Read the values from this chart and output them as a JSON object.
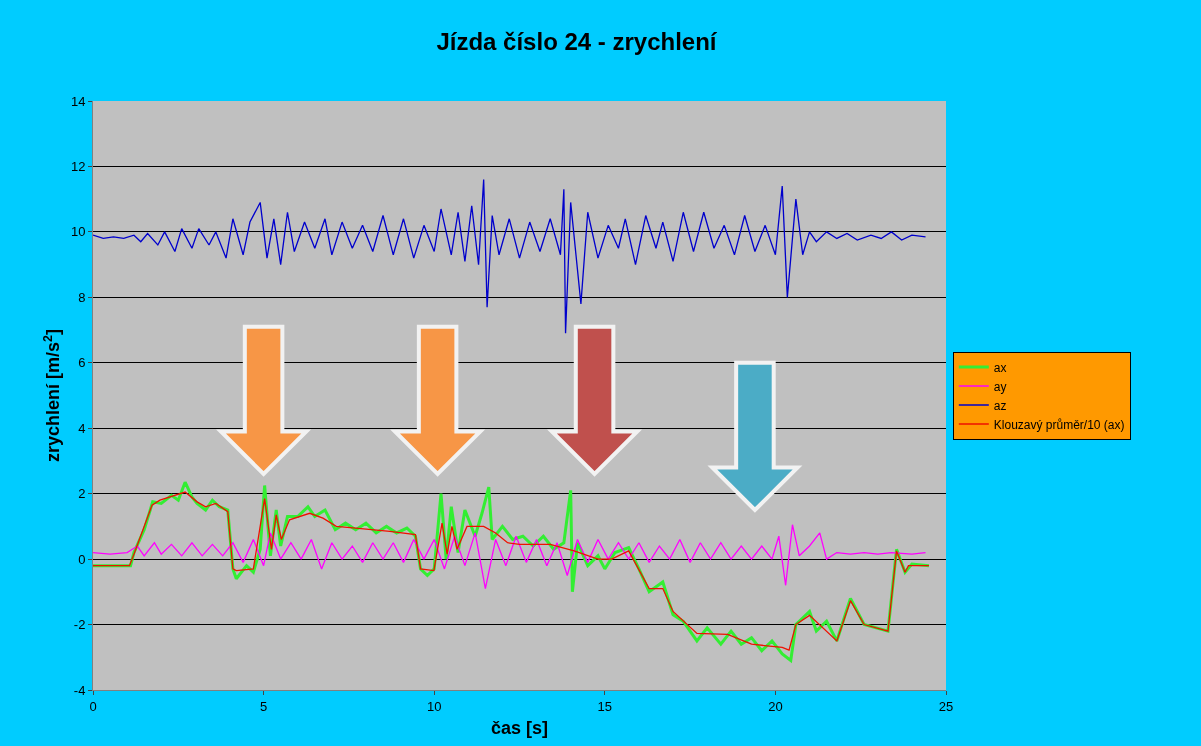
{
  "chart_data": {
    "type": "line",
    "title": "Jízda číslo 24 - zrychlení",
    "xlabel": "čas [s]",
    "ylabel": "zrychlení [m/s$^{2}$]",
    "xlim": [
      0,
      25
    ],
    "xticks": [
      0,
      5,
      10,
      15,
      20,
      25
    ],
    "ylim": [
      -4,
      14
    ],
    "yticks": [
      -4,
      -2,
      0,
      2,
      4,
      6,
      8,
      10,
      12,
      14
    ],
    "grid": "y",
    "legend": "right",
    "marker": "none",
    "line_style": "solid",
    "series": [
      {
        "name": "ax",
        "color": "#33ee33",
        "x": [
          0,
          1.1,
          1.2,
          1.5,
          1.75,
          2.0,
          2.3,
          2.5,
          2.7,
          2.9,
          3.05,
          3.3,
          3.5,
          3.7,
          3.95,
          4.1,
          4.2,
          4.5,
          4.7,
          4.9,
          5.03,
          5.2,
          5.37,
          5.5,
          5.7,
          6.0,
          6.3,
          6.5,
          6.8,
          7.1,
          7.4,
          7.7,
          8.0,
          8.3,
          8.6,
          8.9,
          9.2,
          9.45,
          9.6,
          9.8,
          10.0,
          10.2,
          10.35,
          10.5,
          10.7,
          10.9,
          11.2,
          11.4,
          11.6,
          11.7,
          12.0,
          12.3,
          12.6,
          12.9,
          13.2,
          13.5,
          13.8,
          14.0,
          14.05,
          14.2,
          14.5,
          14.8,
          15.0,
          15.3,
          15.7,
          16.0,
          16.3,
          16.7,
          17.0,
          17.3,
          17.7,
          18.0,
          18.4,
          18.7,
          19.0,
          19.3,
          19.6,
          19.9,
          20.2,
          20.45,
          20.6,
          20.8,
          21.0,
          21.2,
          21.5,
          21.8,
          22.2,
          22.6,
          23.3,
          23.55,
          23.8,
          24.0,
          24.5
        ],
        "values": [
          -0.2,
          -0.2,
          0.2,
          0.9,
          1.75,
          1.7,
          1.95,
          1.8,
          2.35,
          1.9,
          1.7,
          1.5,
          1.8,
          1.6,
          1.5,
          -0.3,
          -0.6,
          -0.2,
          -0.4,
          0.3,
          2.25,
          0.1,
          1.5,
          0.4,
          1.3,
          1.3,
          1.6,
          1.3,
          1.5,
          0.9,
          1.1,
          0.9,
          1.1,
          0.8,
          1.0,
          0.8,
          0.95,
          0.7,
          -0.3,
          -0.5,
          -0.3,
          2.0,
          0.0,
          1.6,
          0.2,
          1.5,
          0.7,
          1.4,
          2.2,
          0.6,
          1.0,
          0.6,
          0.7,
          0.4,
          0.7,
          0.3,
          0.5,
          2.1,
          -1.0,
          0.5,
          -0.2,
          0.1,
          -0.3,
          0.2,
          0.35,
          -0.3,
          -1.0,
          -0.7,
          -1.7,
          -1.9,
          -2.5,
          -2.1,
          -2.6,
          -2.2,
          -2.6,
          -2.4,
          -2.8,
          -2.5,
          -2.9,
          -3.1,
          -2.0,
          -1.8,
          -1.6,
          -2.2,
          -1.9,
          -2.5,
          -1.2,
          -2.0,
          -2.2,
          0.3,
          -0.4,
          -0.15,
          -0.2
        ]
      },
      {
        "name": "ay",
        "color": "#ff00ff",
        "x": [
          0,
          0.5,
          1.0,
          1.3,
          1.5,
          1.8,
          2.0,
          2.3,
          2.6,
          2.9,
          3.2,
          3.5,
          3.8,
          4.1,
          4.4,
          4.7,
          5.0,
          5.2,
          5.5,
          5.8,
          6.1,
          6.4,
          6.7,
          7.0,
          7.3,
          7.6,
          7.9,
          8.2,
          8.5,
          8.8,
          9.1,
          9.4,
          9.7,
          10.0,
          10.3,
          10.6,
          10.9,
          11.2,
          11.5,
          11.8,
          12.1,
          12.4,
          12.7,
          13.0,
          13.3,
          13.6,
          13.9,
          14.2,
          14.5,
          14.8,
          15.1,
          15.4,
          15.7,
          16.0,
          16.3,
          16.6,
          16.9,
          17.2,
          17.5,
          17.8,
          18.1,
          18.4,
          18.7,
          19.0,
          19.3,
          19.6,
          19.9,
          20.1,
          20.3,
          20.5,
          20.7,
          21.0,
          21.3,
          21.5,
          21.8,
          22.2,
          22.6,
          23.0,
          23.4,
          24.0,
          24.4
        ],
        "values": [
          0.2,
          0.15,
          0.2,
          0.4,
          0.1,
          0.5,
          0.15,
          0.45,
          0.1,
          0.5,
          0.1,
          0.45,
          0.1,
          0.5,
          -0.1,
          0.6,
          -0.2,
          0.8,
          0.0,
          0.5,
          0.0,
          0.6,
          -0.3,
          0.5,
          0.0,
          0.4,
          -0.1,
          0.5,
          0.0,
          0.5,
          -0.1,
          0.6,
          0.0,
          0.6,
          -0.3,
          0.7,
          -0.2,
          0.8,
          -0.9,
          0.6,
          -0.2,
          0.7,
          -0.1,
          0.6,
          -0.2,
          0.5,
          -0.5,
          0.6,
          -0.1,
          0.6,
          0.0,
          0.5,
          0.0,
          0.5,
          -0.1,
          0.4,
          0.0,
          0.6,
          -0.1,
          0.5,
          0.0,
          0.5,
          0.0,
          0.4,
          0.0,
          0.4,
          0.0,
          0.7,
          -0.8,
          1.05,
          0.1,
          0.4,
          0.8,
          0.0,
          0.2,
          0.15,
          0.2,
          0.15,
          0.2,
          0.15,
          0.2
        ]
      },
      {
        "name": "az",
        "color": "#0000cc",
        "x": [
          0,
          0.3,
          0.6,
          0.9,
          1.2,
          1.4,
          1.6,
          1.9,
          2.1,
          2.4,
          2.6,
          2.9,
          3.1,
          3.4,
          3.6,
          3.9,
          4.1,
          4.4,
          4.6,
          4.9,
          5.1,
          5.3,
          5.5,
          5.7,
          5.9,
          6.2,
          6.5,
          6.8,
          7.0,
          7.3,
          7.6,
          7.9,
          8.2,
          8.5,
          8.8,
          9.1,
          9.4,
          9.7,
          10.0,
          10.2,
          10.5,
          10.7,
          10.9,
          11.1,
          11.3,
          11.45,
          11.55,
          11.7,
          11.9,
          12.2,
          12.5,
          12.8,
          13.1,
          13.4,
          13.7,
          13.8,
          13.85,
          14.0,
          14.3,
          14.5,
          14.8,
          15.1,
          15.4,
          15.6,
          15.9,
          16.2,
          16.5,
          16.7,
          17.0,
          17.3,
          17.6,
          17.9,
          18.2,
          18.5,
          18.8,
          19.1,
          19.4,
          19.7,
          20.0,
          20.2,
          20.35,
          20.6,
          20.8,
          21.0,
          21.2,
          21.5,
          21.8,
          22.1,
          22.4,
          22.8,
          23.1,
          23.4,
          23.7,
          24.0,
          24.4
        ],
        "values": [
          9.9,
          9.8,
          9.85,
          9.8,
          9.9,
          9.7,
          9.95,
          9.6,
          10.0,
          9.4,
          10.1,
          9.5,
          10.1,
          9.6,
          10.0,
          9.2,
          10.4,
          9.3,
          10.3,
          10.9,
          9.2,
          10.4,
          9.0,
          10.6,
          9.4,
          10.3,
          9.5,
          10.4,
          9.3,
          10.3,
          9.5,
          10.2,
          9.4,
          10.5,
          9.3,
          10.4,
          9.2,
          10.2,
          9.4,
          10.7,
          9.3,
          10.6,
          9.1,
          10.8,
          9.0,
          11.6,
          7.7,
          10.5,
          9.3,
          10.4,
          9.2,
          10.3,
          9.4,
          10.4,
          9.3,
          11.3,
          6.9,
          10.9,
          7.8,
          10.6,
          9.2,
          10.2,
          9.5,
          10.4,
          9.0,
          10.5,
          9.5,
          10.3,
          9.1,
          10.6,
          9.4,
          10.6,
          9.5,
          10.2,
          9.3,
          10.5,
          9.4,
          10.2,
          9.3,
          11.4,
          8.0,
          11.0,
          9.3,
          10.0,
          9.7,
          10.0,
          9.8,
          9.95,
          9.75,
          9.9,
          9.8,
          10.0,
          9.75,
          9.9,
          9.85
        ]
      },
      {
        "name": "Klouzavý průměr/10 (ax)",
        "color": "#ee1100",
        "x": [
          0,
          1.07,
          1.2,
          1.73,
          1.96,
          2.7,
          3.05,
          3.3,
          3.6,
          3.95,
          4.1,
          4.2,
          4.7,
          5.03,
          5.23,
          5.37,
          5.52,
          5.76,
          6.35,
          6.74,
          7.13,
          7.7,
          8.7,
          9.45,
          9.6,
          9.99,
          10.23,
          10.38,
          10.52,
          10.67,
          10.96,
          11.45,
          11.8,
          12.15,
          12.5,
          13.4,
          14.1,
          14.8,
          15.2,
          15.7,
          16.3,
          16.7,
          17.0,
          17.7,
          18.6,
          19.3,
          20.2,
          20.4,
          20.6,
          21.0,
          21.8,
          22.2,
          22.6,
          23.3,
          23.55,
          23.8,
          23.9,
          24.5
        ],
        "values": [
          -0.2,
          -0.2,
          0.15,
          1.65,
          1.8,
          2.05,
          1.75,
          1.6,
          1.7,
          1.45,
          -0.3,
          -0.35,
          -0.3,
          1.85,
          0.3,
          1.35,
          0.6,
          1.2,
          1.4,
          1.25,
          1.0,
          0.95,
          0.85,
          0.75,
          -0.3,
          -0.35,
          1.1,
          0.15,
          1.0,
          0.3,
          1.0,
          1.0,
          0.8,
          0.5,
          0.45,
          0.45,
          0.25,
          0.0,
          0.0,
          0.25,
          -0.9,
          -0.9,
          -1.6,
          -2.27,
          -2.3,
          -2.6,
          -2.7,
          -2.78,
          -2.0,
          -1.72,
          -2.5,
          -1.27,
          -2.0,
          -2.2,
          0.25,
          -0.4,
          -0.2,
          -0.2
        ]
      }
    ]
  }
}
